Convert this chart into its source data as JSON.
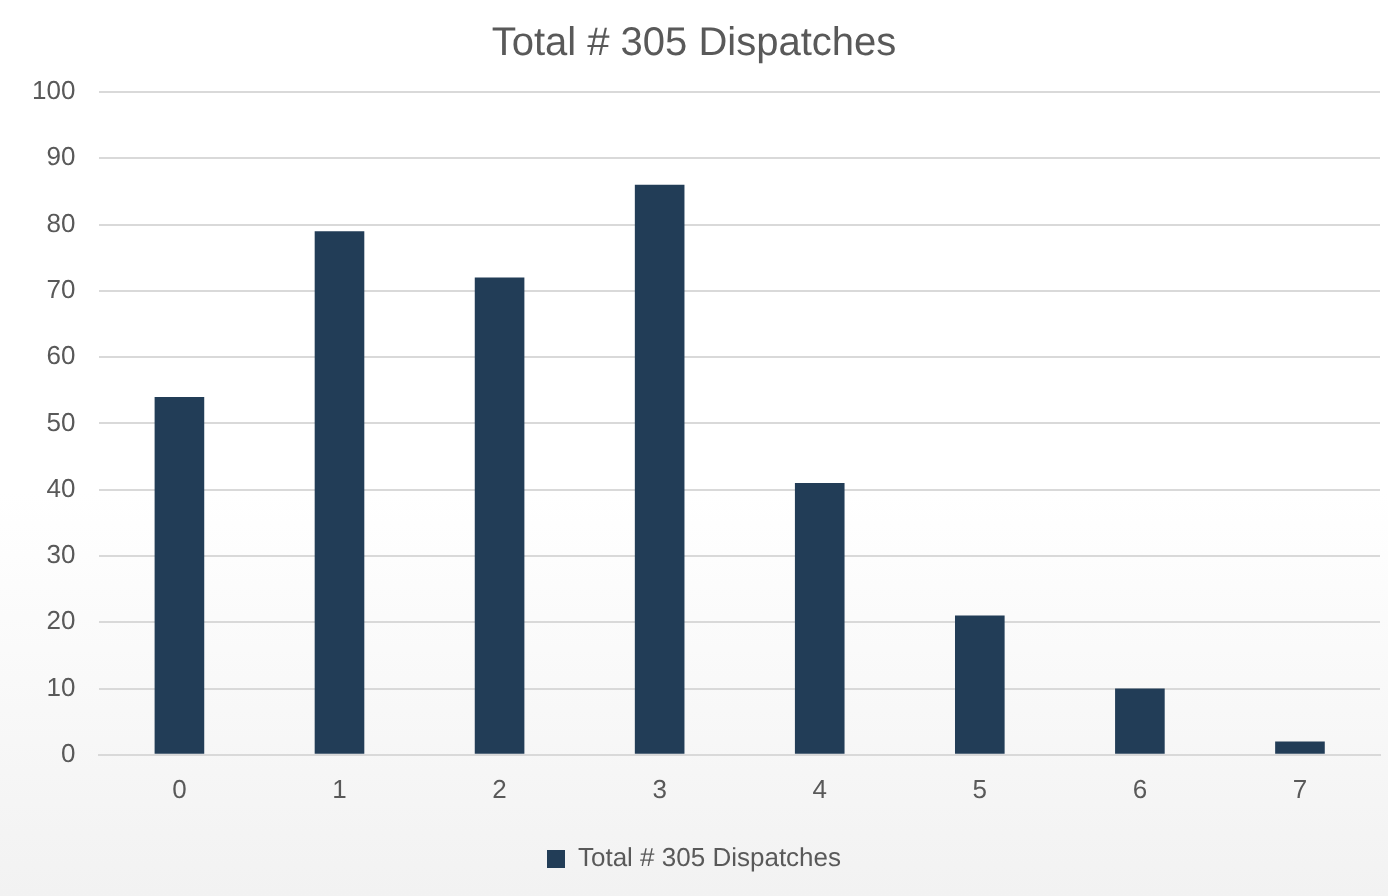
{
  "chart_data": {
    "type": "bar",
    "title": "Total # 305 Dispatches",
    "categories": [
      "0",
      "1",
      "2",
      "3",
      "4",
      "5",
      "6",
      "7"
    ],
    "series": [
      {
        "name": "Total # 305 Dispatches",
        "color": "#223d57",
        "values": [
          54,
          79,
          72,
          86,
          41,
          21,
          10,
          2
        ]
      }
    ],
    "ylim": [
      0,
      100
    ],
    "yticks": [
      0,
      10,
      20,
      30,
      40,
      50,
      60,
      70,
      80,
      90,
      100
    ],
    "grid": "y",
    "legend": "bottom"
  }
}
